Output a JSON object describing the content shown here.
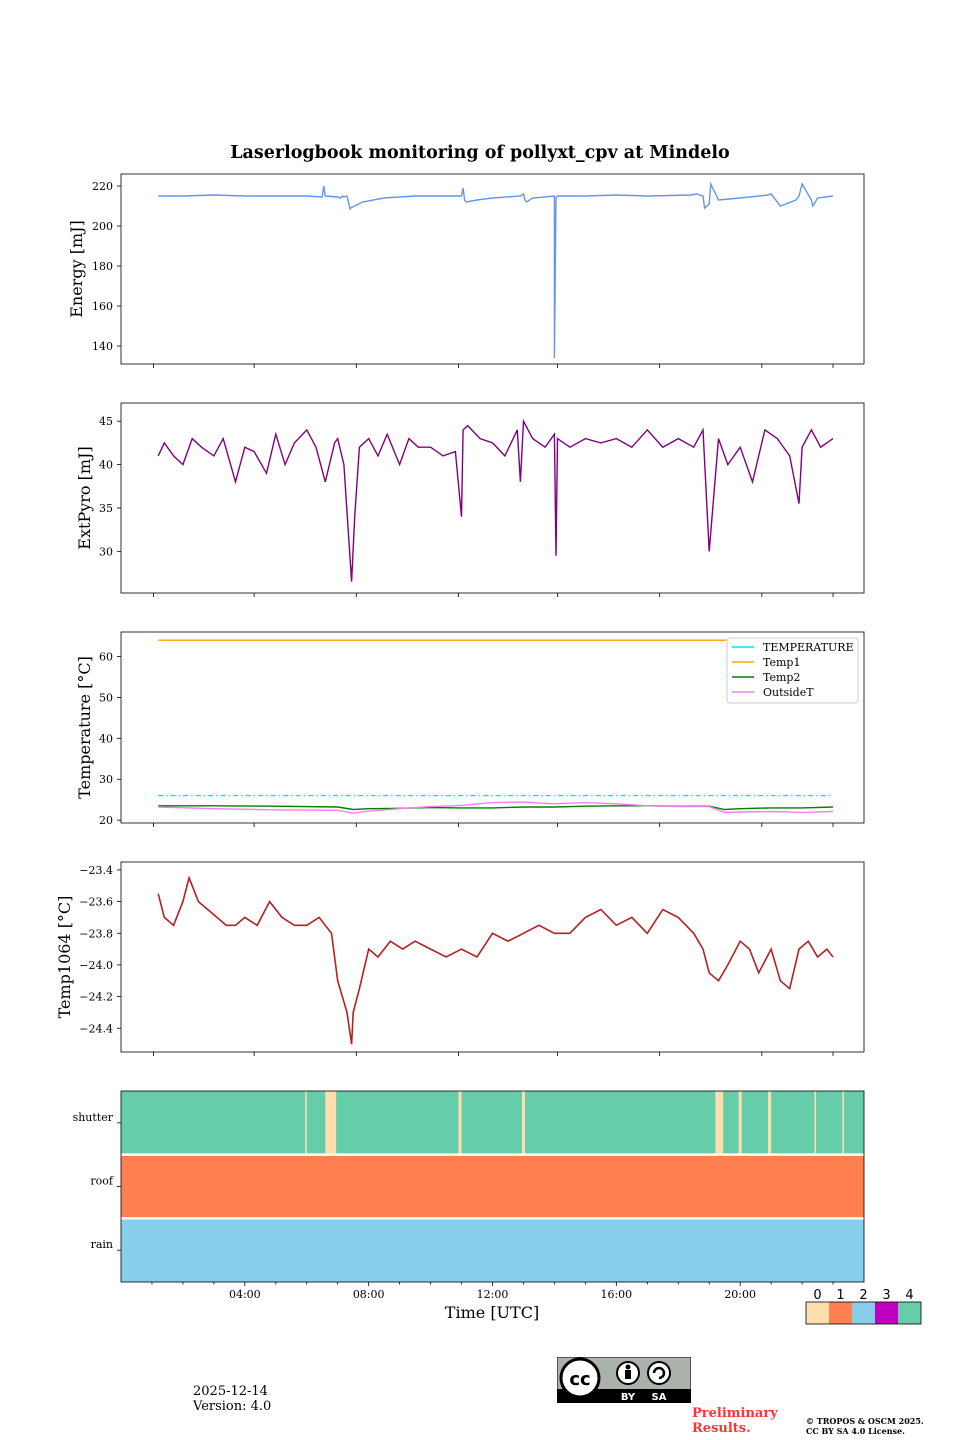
{
  "chart_data": [
    {
      "type": "line",
      "title": "Laserlogbook monitoring of pollyxt_cpv at Mindelo",
      "ylabel": "Energy [mJ]",
      "ylim": [
        131,
        226
      ],
      "yticks": [
        140,
        160,
        180,
        200,
        220
      ],
      "x_range_hours": [
        0,
        24
      ],
      "x": [
        1.2,
        2,
        3,
        4,
        5,
        6,
        6.5,
        6.55,
        6.6,
        7.0,
        7.1,
        7.15,
        7.2,
        7.3,
        7.4,
        7.42,
        7.8,
        8.5,
        9.5,
        10.5,
        11.0,
        11.05,
        11.1,
        11.15,
        11.5,
        12.0,
        12.9,
        13.0,
        13.05,
        13.1,
        13.3,
        14.0,
        14.0,
        14.05,
        14.1,
        15,
        16,
        17,
        18.4,
        18.6,
        18.8,
        18.85,
        19.0,
        19.05,
        19.3,
        20.0,
        20.9,
        21.0,
        21.3,
        21.8,
        21.9,
        22.0,
        22.3,
        22.35,
        22.5,
        23.0
      ],
      "series": [
        {
          "name": "Energy",
          "color": "#6495ed",
          "values": [
            215,
            215,
            215.5,
            215,
            215,
            215,
            214.5,
            220,
            215,
            214.5,
            214,
            215,
            214.5,
            215,
            208.5,
            209,
            212,
            214,
            215,
            215,
            215,
            219,
            213,
            212,
            213,
            214,
            215,
            216,
            213,
            212,
            214,
            215,
            134,
            214,
            215,
            215,
            215.5,
            215,
            215.5,
            216,
            215,
            209,
            211,
            221,
            213,
            214,
            215.5,
            216,
            210,
            213,
            215,
            221,
            213,
            210,
            214,
            215
          ]
        }
      ]
    },
    {
      "type": "line",
      "ylabel": "ExtPyro [mJ]",
      "ylim": [
        25.2,
        47.1
      ],
      "yticks": [
        30,
        35,
        40,
        45
      ],
      "x": [
        1.2,
        1.4,
        1.7,
        2.0,
        2.3,
        2.6,
        3.0,
        3.3,
        3.7,
        4.0,
        4.3,
        4.7,
        5.0,
        5.3,
        5.6,
        6.0,
        6.3,
        6.6,
        6.9,
        7.0,
        7.2,
        7.45,
        7.55,
        7.7,
        8.0,
        8.3,
        8.6,
        9.0,
        9.3,
        9.6,
        10.0,
        10.4,
        10.8,
        11.0,
        11.05,
        11.2,
        11.6,
        12.0,
        12.4,
        12.8,
        12.9,
        13.0,
        13.3,
        13.7,
        14.0,
        14.05,
        14.1,
        14.5,
        15.0,
        15.5,
        16.0,
        16.5,
        17.0,
        17.5,
        18.0,
        18.5,
        18.8,
        19.0,
        19.3,
        19.6,
        20.0,
        20.4,
        20.8,
        21.2,
        21.6,
        21.9,
        22.0,
        22.3,
        22.6,
        23.0
      ],
      "series": [
        {
          "name": "ExtPyro",
          "color": "#800080",
          "values": [
            41,
            42.5,
            41,
            40,
            43,
            42,
            41,
            43,
            38,
            42,
            41.5,
            39,
            43.5,
            40,
            42.5,
            44,
            42,
            38,
            42.5,
            43,
            40,
            26.5,
            34,
            42,
            43,
            41,
            43.5,
            40,
            43,
            42,
            42,
            41,
            41.5,
            34,
            44,
            44.5,
            43,
            42.5,
            41,
            44,
            38,
            45,
            43,
            42,
            43.5,
            29.5,
            43,
            42,
            43,
            42.5,
            43,
            42,
            44,
            42,
            43,
            42,
            44,
            30,
            43,
            40,
            42,
            38,
            44,
            43,
            41,
            35.5,
            42,
            44,
            42,
            43
          ]
        }
      ]
    },
    {
      "type": "line",
      "ylabel": "Temperature [°C]",
      "ylim": [
        19.3,
        66
      ],
      "yticks": [
        20,
        30,
        40,
        50,
        60
      ],
      "x": [
        1.2,
        3,
        5,
        7,
        7.5,
        8,
        9,
        10,
        11,
        12,
        13,
        14,
        15,
        16,
        17,
        18,
        19,
        19.5,
        20,
        21,
        22,
        23
      ],
      "series": [
        {
          "name": "TEMPERATURE",
          "color": "#00e5ee",
          "dashed": true,
          "values": [
            26,
            26,
            26,
            26,
            26,
            26,
            26,
            26,
            26,
            26,
            26,
            26,
            26,
            26,
            26,
            26,
            26,
            26,
            26,
            26,
            26,
            26
          ]
        },
        {
          "name": "Temp1",
          "color": "#ffa500",
          "values": [
            64,
            64,
            64,
            64,
            64,
            64,
            64,
            64,
            64,
            64,
            64,
            64,
            64,
            64,
            64,
            64,
            64,
            64,
            64,
            64,
            64,
            64
          ]
        },
        {
          "name": "Temp2",
          "color": "#008000",
          "values": [
            23.5,
            23.5,
            23.4,
            23.2,
            22.6,
            22.8,
            22.9,
            23.1,
            23.0,
            23.0,
            23.2,
            23.2,
            23.4,
            23.5,
            23.5,
            23.4,
            23.4,
            22.6,
            22.8,
            23.0,
            23.0,
            23.2
          ]
        },
        {
          "name": "OutsideT",
          "color": "#ee82ee",
          "values": [
            23.2,
            22.8,
            22.5,
            22.4,
            21.7,
            22.2,
            22.8,
            23.3,
            23.6,
            24.3,
            24.4,
            24.0,
            24.3,
            24.0,
            23.5,
            23.3,
            23.3,
            21.9,
            22.0,
            22.1,
            21.9,
            22.1
          ]
        }
      ],
      "legend": "top-right"
    },
    {
      "type": "line",
      "ylabel": "Temp1064 [°C]",
      "ylim": [
        -24.55,
        -23.35
      ],
      "yticks": [
        -23.4,
        -23.6,
        -23.8,
        -24.0,
        -24.2,
        -24.4
      ],
      "x": [
        1.2,
        1.4,
        1.7,
        2.0,
        2.2,
        2.5,
        2.8,
        3.1,
        3.4,
        3.7,
        4.0,
        4.4,
        4.8,
        5.2,
        5.6,
        6.0,
        6.4,
        6.8,
        7.0,
        7.3,
        7.45,
        7.5,
        7.7,
        8.0,
        8.3,
        8.7,
        9.1,
        9.5,
        10.0,
        10.5,
        11.0,
        11.5,
        12.0,
        12.5,
        13.0,
        13.5,
        14.0,
        14.5,
        15.0,
        15.5,
        16.0,
        16.5,
        17.0,
        17.5,
        18.0,
        18.5,
        18.8,
        19.0,
        19.3,
        19.6,
        20.0,
        20.3,
        20.6,
        21.0,
        21.3,
        21.6,
        21.9,
        22.2,
        22.5,
        22.8,
        23.0
      ],
      "series": [
        {
          "name": "Temp1064",
          "color": "#b22222",
          "values": [
            -23.55,
            -23.7,
            -23.75,
            -23.6,
            -23.45,
            -23.6,
            -23.65,
            -23.7,
            -23.75,
            -23.75,
            -23.7,
            -23.75,
            -23.6,
            -23.7,
            -23.75,
            -23.75,
            -23.7,
            -23.8,
            -24.1,
            -24.3,
            -24.5,
            -24.3,
            -24.15,
            -23.9,
            -23.95,
            -23.85,
            -23.9,
            -23.85,
            -23.9,
            -23.95,
            -23.9,
            -23.95,
            -23.8,
            -23.85,
            -23.8,
            -23.75,
            -23.8,
            -23.8,
            -23.7,
            -23.65,
            -23.75,
            -23.7,
            -23.8,
            -23.65,
            -23.7,
            -23.8,
            -23.9,
            -24.05,
            -24.1,
            -24.0,
            -23.85,
            -23.9,
            -24.05,
            -23.9,
            -24.1,
            -24.15,
            -23.9,
            -23.85,
            -23.95,
            -23.9,
            -23.95
          ]
        }
      ]
    },
    {
      "type": "heatmap",
      "xlabel": "Time [UTC]",
      "xticks": [
        "04:00",
        "08:00",
        "12:00",
        "16:00",
        "20:00"
      ],
      "xtick_hours": [
        4,
        8,
        12,
        16,
        20
      ],
      "rows": [
        "shutter",
        "roof",
        "rain"
      ],
      "row_base_value": [
        4,
        1,
        2
      ],
      "shutter_state0_hours": [
        [
          5.95,
          6.0
        ],
        [
          6.6,
          6.95
        ],
        [
          10.9,
          11.0
        ],
        [
          12.95,
          13.05
        ],
        [
          19.2,
          19.45
        ],
        [
          19.95,
          20.05
        ],
        [
          20.9,
          21.0
        ],
        [
          22.4,
          22.45
        ],
        [
          23.3,
          23.35
        ]
      ],
      "colorbar_ticks": [
        "0",
        "1",
        "2",
        "3",
        "4"
      ],
      "colorbar_colors": [
        "#ffdead",
        "#ff7f50",
        "#87ceeb",
        "#c000c0",
        "#66cdaa"
      ]
    }
  ],
  "footer": {
    "date": "2025-12-14",
    "version": "Version: 4.0",
    "preliminary_line1": "Preliminary",
    "preliminary_line2": "Results.",
    "copyright_line1": "© TROPOS & OSCM 2025.",
    "copyright_line2": "CC BY SA 4.0 License.",
    "cc_badge_by": "BY",
    "cc_badge_sa": "SA"
  }
}
